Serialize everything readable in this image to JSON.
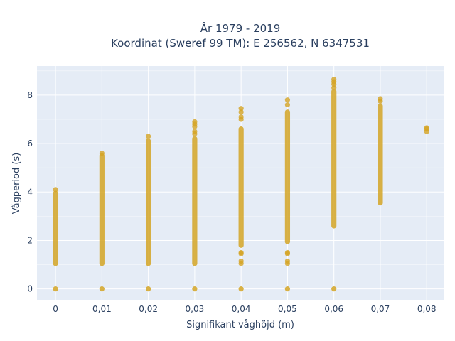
{
  "chart_data": {
    "type": "scatter",
    "title_line1": "År 1979 - 2019",
    "title_line2": "Koordinat (Sweref 99 TM): E 256562, N 6347531",
    "xlabel": "Signifikant våghöjd (m)",
    "ylabel": "Vågperiod (s)",
    "xlim": [
      -0.004,
      0.0838
    ],
    "ylim": [
      -0.45,
      9.2
    ],
    "x_ticks": [
      0,
      0.01,
      0.02,
      0.03,
      0.04,
      0.05,
      0.06,
      0.07,
      0.08
    ],
    "x_tick_labels": [
      "0",
      "0,01",
      "0,02",
      "0,03",
      "0,04",
      "0,05",
      "0,06",
      "0,07",
      "0,08"
    ],
    "y_ticks": [
      0,
      2,
      4,
      6,
      8
    ],
    "y_tick_labels": [
      "0",
      "2",
      "4",
      "6",
      "8"
    ],
    "grid": true,
    "background": "#e5ecf6",
    "marker_color": "#d4a424",
    "series": [
      {
        "x": 0,
        "zero": true,
        "segments": [
          [
            1.05,
            3.95
          ]
        ],
        "points": [
          4.1
        ]
      },
      {
        "x": 0.01,
        "zero": true,
        "segments": [
          [
            1.05,
            5.5
          ]
        ],
        "points": [
          5.6
        ]
      },
      {
        "x": 0.02,
        "zero": true,
        "segments": [
          [
            1.05,
            6.1
          ]
        ],
        "points": [
          6.3
        ]
      },
      {
        "x": 0.03,
        "zero": true,
        "segments": [
          [
            1.05,
            6.2
          ]
        ],
        "points": [
          6.4,
          6.5,
          6.7,
          6.8,
          6.9
        ]
      },
      {
        "x": 0.04,
        "zero": true,
        "segments": [
          [
            1.8,
            6.6
          ]
        ],
        "points": [
          1.05,
          1.15,
          1.45,
          1.5,
          7.0,
          7.1,
          7.3,
          7.45
        ]
      },
      {
        "x": 0.05,
        "zero": true,
        "segments": [
          [
            1.95,
            7.3
          ]
        ],
        "points": [
          1.05,
          1.15,
          1.45,
          1.5,
          7.6,
          7.8
        ]
      },
      {
        "x": 0.06,
        "zero": true,
        "segments": [
          [
            2.6,
            8.15
          ]
        ],
        "points": [
          8.3,
          8.45,
          8.55,
          8.65
        ]
      },
      {
        "x": 0.07,
        "zero": false,
        "segments": [
          [
            3.55,
            7.55
          ]
        ],
        "points": [
          7.75,
          7.85
        ]
      },
      {
        "x": 0.08,
        "zero": false,
        "segments": [],
        "points": [
          6.5,
          6.6,
          6.65
        ]
      }
    ]
  }
}
